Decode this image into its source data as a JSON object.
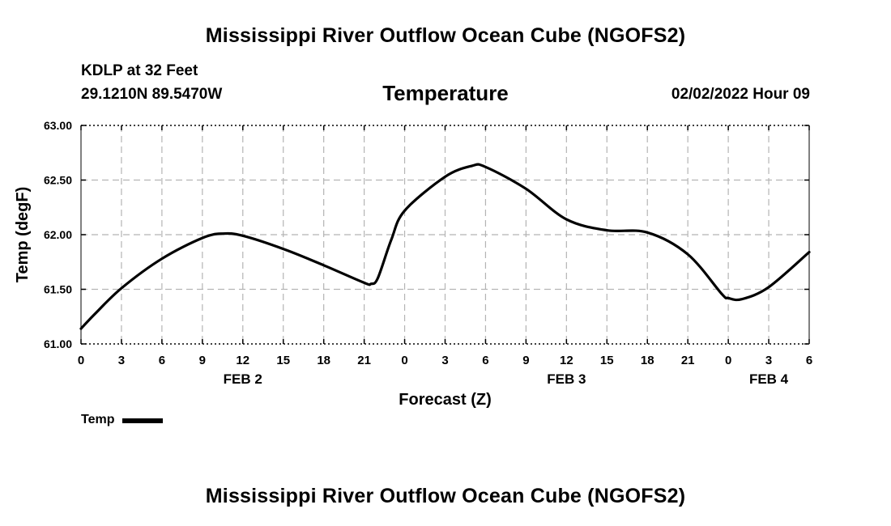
{
  "page": {
    "title_top": "Mississippi River Outflow Ocean Cube (NGOFS2)",
    "title_bottom": "Mississippi River Outflow Ocean Cube (NGOFS2)",
    "station_label": "KDLP at 32 Feet",
    "location": "29.1210N  89.5470W",
    "parameter": "Temperature",
    "datetime": "02/02/2022 Hour 09"
  },
  "colors": {
    "line": "#000000",
    "grid": "#b4b4b4",
    "background": "#ffffff"
  },
  "chart_data": {
    "type": "line",
    "title": "Temperature",
    "xlabel": "Forecast (Z)",
    "ylabel": "Temp (degF)",
    "xlim": [
      0,
      54
    ],
    "ylim": [
      61.0,
      63.0
    ],
    "x_ticks": [
      0,
      3,
      6,
      9,
      12,
      15,
      18,
      21,
      24,
      27,
      30,
      33,
      36,
      39,
      42,
      45,
      48,
      51,
      54
    ],
    "x_tick_labels": [
      "0",
      "3",
      "6",
      "9",
      "12",
      "15",
      "18",
      "21",
      "0",
      "3",
      "6",
      "9",
      "12",
      "15",
      "18",
      "21",
      "0",
      "3",
      "6"
    ],
    "y_ticks": [
      61.0,
      61.5,
      62.0,
      62.5,
      63.0
    ],
    "y_tick_labels": [
      "61.00",
      "61.50",
      "62.00",
      "62.50",
      "63.00"
    ],
    "date_labels": [
      {
        "x": 12,
        "label": "FEB 2"
      },
      {
        "x": 36,
        "label": "FEB 3"
      },
      {
        "x": 51,
        "label": "FEB 4"
      }
    ],
    "grid": true,
    "legend": {
      "position": "bottom-left",
      "entries": [
        "Temp"
      ]
    },
    "series": [
      {
        "name": "Temp",
        "x": [
          0,
          1,
          3,
          6,
          9,
          10.5,
          12,
          15,
          18,
          21,
          21.5,
          22,
          23,
          24,
          27,
          29,
          30,
          33,
          36,
          39,
          42,
          45,
          47.5,
          48,
          49,
          51,
          54
        ],
        "values": [
          61.14,
          61.27,
          61.51,
          61.78,
          61.97,
          62.01,
          61.99,
          61.87,
          61.72,
          61.56,
          61.55,
          61.6,
          61.95,
          62.22,
          62.53,
          62.63,
          62.62,
          62.42,
          62.14,
          62.04,
          62.02,
          61.82,
          61.46,
          61.42,
          61.41,
          61.52,
          61.84
        ]
      }
    ]
  }
}
